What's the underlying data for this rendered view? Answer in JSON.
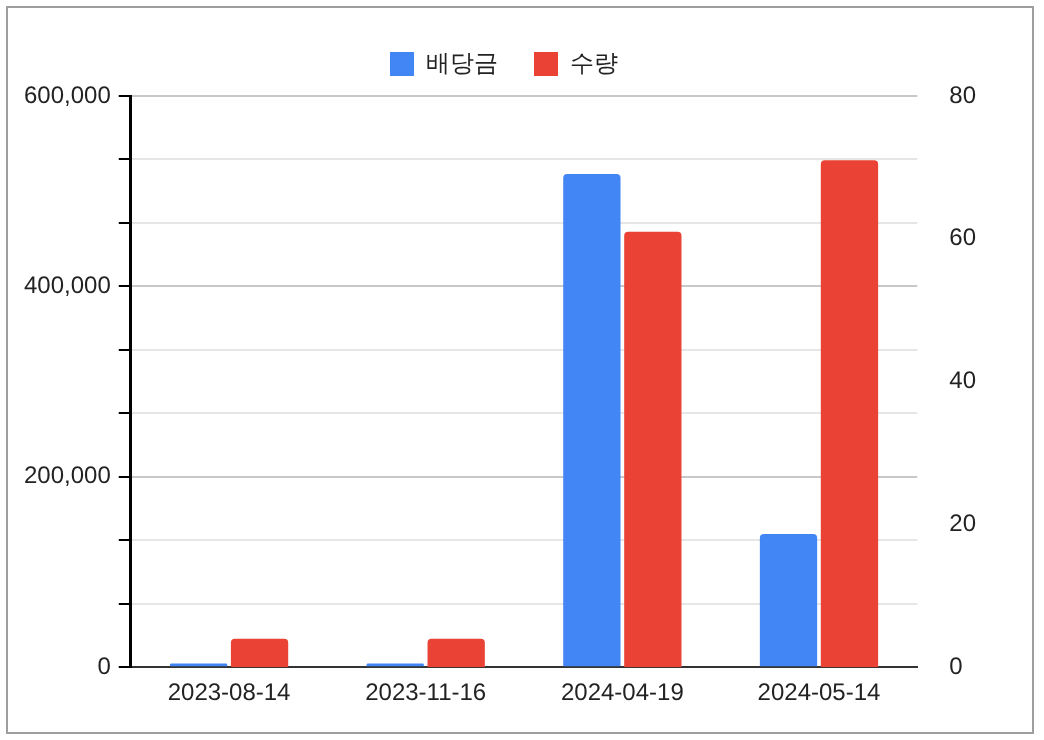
{
  "chart_data": {
    "type": "bar",
    "categories": [
      "2023-08-14",
      "2023-11-16",
      "2024-04-19",
      "2024-05-14"
    ],
    "series": [
      {
        "name": "배당금",
        "color": "#4285f4",
        "values": [
          4000,
          4000,
          518000,
          140000
        ]
      },
      {
        "name": "수량",
        "color": "#ea4335",
        "values": [
          4,
          4,
          61,
          71
        ],
        "axis": "y2"
      }
    ],
    "ylim": [
      0,
      600000
    ],
    "yticks": [
      0,
      {
        "value": 66666.67,
        "label": null
      },
      {
        "value": 133333.33,
        "label": null
      },
      {
        "value": 200000,
        "label": "200,000"
      },
      {
        "value": 266666.67,
        "label": null
      },
      {
        "value": 333333.33,
        "label": null
      },
      {
        "value": 400000,
        "label": "400,000"
      },
      {
        "value": 466666.67,
        "label": null
      },
      {
        "value": 533333.33,
        "label": null
      },
      {
        "value": 600000,
        "label": "600,000"
      }
    ],
    "y2lim": [
      0,
      80
    ],
    "y2ticks": [
      0,
      20,
      40,
      60,
      80
    ],
    "grid": "y",
    "legend": "top"
  }
}
